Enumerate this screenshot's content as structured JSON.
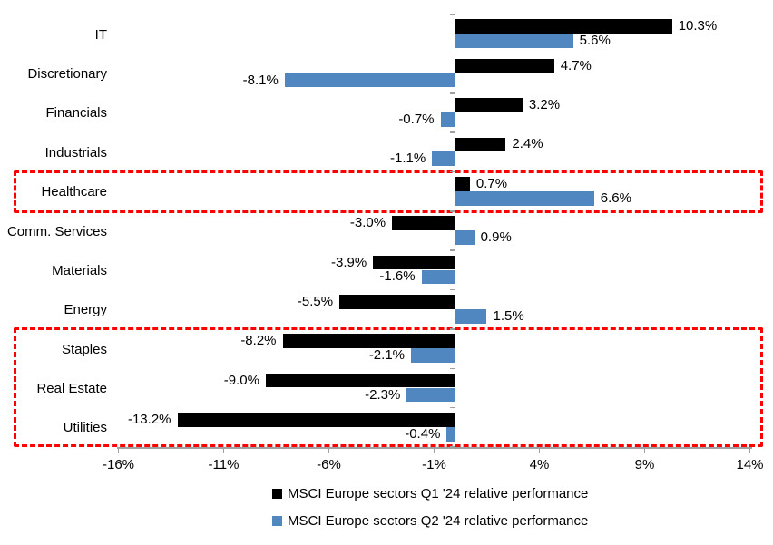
{
  "chart_data": {
    "type": "bar",
    "orientation": "horizontal",
    "title": "",
    "categories": [
      "IT",
      "Discretionary",
      "Financials",
      "Industrials",
      "Healthcare",
      "Comm. Services",
      "Materials",
      "Energy",
      "Staples",
      "Real Estate",
      "Utilities"
    ],
    "series": [
      {
        "name": "MSCI Europe sectors Q1 '24 relative performance",
        "color": "#000000",
        "values": [
          10.3,
          4.7,
          3.2,
          2.4,
          0.7,
          -3.0,
          -3.9,
          -5.5,
          -8.2,
          -9.0,
          -13.2
        ],
        "labels": [
          "10.3%",
          "4.7%",
          "3.2%",
          "2.4%",
          "0.7%",
          "-3.0%",
          "-3.9%",
          "-5.5%",
          "-8.2%",
          "-9.0%",
          "-13.2%"
        ]
      },
      {
        "name": "MSCI Europe sectors Q2 '24 relative performance",
        "color": "#5087C1",
        "values": [
          5.6,
          -8.1,
          -0.7,
          -1.1,
          6.6,
          0.9,
          -1.6,
          1.5,
          -2.1,
          -2.3,
          -0.4
        ],
        "labels": [
          "5.6%",
          "-8.1%",
          "-0.7%",
          "-1.1%",
          "6.6%",
          "0.9%",
          "-1.6%",
          "1.5%",
          "-2.1%",
          "-2.3%",
          "-0.4%"
        ]
      }
    ],
    "x_axis": {
      "tick_labels": [
        "-16%",
        "-11%",
        "-6%",
        "-1%",
        "4%",
        "9%",
        "14%"
      ],
      "tick_values": [
        -16,
        -11,
        -6,
        -1,
        4,
        9,
        14
      ],
      "unit": "%"
    },
    "grid": false,
    "legend_position": "bottom",
    "axis_color": "#A0A0A0",
    "highlight_color": "#FF0000",
    "highlights": [
      {
        "categories": [
          "Healthcare"
        ]
      },
      {
        "categories": [
          "Staples",
          "Real Estate",
          "Utilities"
        ]
      }
    ]
  }
}
